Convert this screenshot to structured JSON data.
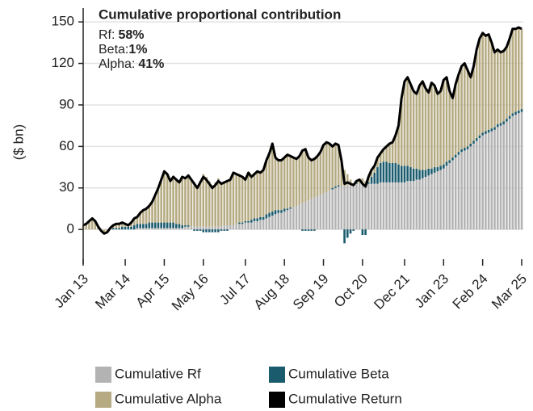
{
  "chart_data": {
    "type": "stacked_bar_line",
    "ylabel": "($ bn)",
    "annotation": {
      "title": "Cumulative proportional contribution",
      "items": [
        {
          "label": "Rf:",
          "value": 58,
          "value_label": "58%"
        },
        {
          "label": "Beta:",
          "value": 1,
          "value_label": "1%"
        },
        {
          "label": "Alpha:",
          "value": 41,
          "value_label": "41%"
        }
      ]
    },
    "categories": [
      "Jan 13",
      null,
      null,
      null,
      null,
      null,
      null,
      null,
      null,
      null,
      null,
      null,
      null,
      null,
      "Mar 14",
      null,
      null,
      null,
      null,
      null,
      null,
      null,
      null,
      null,
      null,
      null,
      null,
      "Apr 15",
      null,
      null,
      null,
      null,
      null,
      null,
      null,
      null,
      null,
      null,
      null,
      null,
      "May 16",
      null,
      null,
      null,
      null,
      null,
      null,
      null,
      null,
      null,
      null,
      null,
      null,
      null,
      "Jul 17",
      null,
      null,
      null,
      null,
      null,
      null,
      null,
      null,
      null,
      null,
      null,
      null,
      "Aug 18",
      null,
      null,
      null,
      null,
      null,
      null,
      null,
      null,
      null,
      null,
      null,
      null,
      "Sep 19",
      null,
      null,
      null,
      null,
      null,
      null,
      null,
      null,
      null,
      null,
      null,
      null,
      "Oct 20",
      null,
      null,
      null,
      null,
      null,
      null,
      null,
      null,
      null,
      null,
      null,
      null,
      null,
      "Dec 21",
      null,
      null,
      null,
      null,
      null,
      null,
      null,
      null,
      null,
      null,
      null,
      null,
      "Jan 23",
      null,
      null,
      null,
      null,
      null,
      null,
      null,
      null,
      null,
      null,
      null,
      null,
      "Feb 24",
      null,
      null,
      null,
      null,
      null,
      null,
      null,
      null,
      null,
      null,
      null,
      null,
      "Mar 25"
    ],
    "series": [
      {
        "name": "Cumulative Rf",
        "color": "#b3b3b3",
        "kind": "bar",
        "values": [
          0,
          0,
          0,
          0,
          0,
          0,
          0,
          0,
          0,
          0,
          0,
          0,
          0,
          0,
          0,
          0,
          0,
          0,
          1,
          1,
          1,
          1,
          1,
          1,
          1,
          1,
          1,
          1,
          1,
          1,
          1,
          1,
          1,
          1,
          2,
          2,
          2,
          2,
          2,
          2,
          2,
          2,
          2,
          2,
          2,
          2,
          2,
          3,
          3,
          3,
          3,
          4,
          4,
          4,
          5,
          5,
          5,
          6,
          6,
          7,
          7,
          8,
          9,
          10,
          11,
          12,
          12,
          13,
          14,
          15,
          16,
          17,
          18,
          19,
          20,
          21,
          22,
          23,
          24,
          25,
          26,
          27,
          28,
          29,
          30,
          31,
          31,
          31,
          32,
          32,
          33,
          33,
          33,
          32,
          32,
          33,
          33,
          33,
          33,
          34,
          34,
          34,
          34,
          34,
          34,
          34,
          34,
          34,
          35,
          35,
          35,
          36,
          36,
          37,
          38,
          39,
          40,
          41,
          42,
          43,
          44,
          46,
          48,
          50,
          52,
          54,
          56,
          57,
          58,
          60,
          62,
          64,
          66,
          68,
          69,
          70,
          71,
          72,
          74,
          75,
          76,
          78,
          80,
          82,
          83,
          84,
          85
        ]
      },
      {
        "name": "Cumulative Beta",
        "color": "#1a5b6e",
        "kind": "bar",
        "values": [
          0,
          0,
          0,
          0,
          0,
          0,
          0,
          0,
          0,
          1,
          1,
          1,
          1,
          2,
          2,
          2,
          2,
          3,
          3,
          3,
          3,
          3,
          4,
          4,
          4,
          4,
          4,
          4,
          4,
          4,
          4,
          3,
          3,
          2,
          1,
          1,
          0,
          -1,
          -1,
          -1,
          -2,
          -2,
          -2,
          -2,
          -2,
          -2,
          -1,
          -1,
          -1,
          0,
          0,
          0,
          1,
          1,
          1,
          1,
          2,
          2,
          2,
          2,
          2,
          3,
          3,
          3,
          3,
          2,
          2,
          2,
          1,
          1,
          0,
          0,
          0,
          -1,
          -1,
          -1,
          -1,
          -1,
          0,
          0,
          0,
          0,
          0,
          1,
          1,
          1,
          0,
          -10,
          -6,
          -3,
          -1,
          1,
          0,
          -4,
          -4,
          1,
          5,
          8,
          12,
          14,
          15,
          15,
          14,
          14,
          14,
          13,
          12,
          12,
          11,
          10,
          9,
          8,
          7,
          6,
          5,
          5,
          4,
          4,
          3,
          3,
          3,
          3,
          2,
          2,
          2,
          2,
          2,
          2,
          2,
          2,
          2,
          2,
          2,
          2,
          2,
          2,
          2,
          2,
          2,
          2,
          2,
          2,
          2,
          2,
          2,
          2,
          2
        ]
      },
      {
        "name": "Cumulative Alpha",
        "color": "#b5aa82",
        "kind": "bar",
        "values": [
          3,
          4,
          6,
          8,
          6,
          2,
          -1,
          -3,
          -2,
          0,
          2,
          3,
          3,
          3,
          2,
          1,
          3,
          5,
          5,
          8,
          10,
          11,
          12,
          15,
          20,
          25,
          31,
          37,
          35,
          30,
          33,
          32,
          30,
          35,
          34,
          36,
          34,
          32,
          29,
          33,
          38,
          36,
          33,
          30,
          32,
          35,
          32,
          32,
          33,
          33,
          38,
          36,
          34,
          33,
          30,
          35,
          31,
          32,
          34,
          32,
          34,
          39,
          43,
          49,
          38,
          36,
          36,
          37,
          39,
          37,
          36,
          34,
          35,
          39,
          39,
          32,
          29,
          29,
          29,
          31,
          35,
          36,
          34,
          30,
          31,
          29,
          19,
          12,
          8,
          4,
          0,
          1,
          3,
          5,
          3,
          4,
          5,
          5,
          7,
          7,
          9,
          11,
          14,
          15,
          20,
          28,
          49,
          61,
          64,
          60,
          56,
          54,
          61,
          64,
          59,
          55,
          62,
          59,
          53,
          54,
          61,
          61,
          50,
          43,
          51,
          56,
          60,
          61,
          55,
          48,
          54,
          64,
          70,
          72,
          69,
          69,
          62,
          54,
          54,
          51,
          51,
          52,
          56,
          61,
          60,
          60,
          58
        ]
      },
      {
        "name": "Cumulative Return",
        "color": "#000000",
        "kind": "line",
        "values": [
          3,
          4,
          6,
          8,
          6,
          2,
          -1,
          -3,
          -2,
          1,
          3,
          4,
          4,
          5,
          4,
          3,
          5,
          8,
          9,
          12,
          14,
          15,
          17,
          20,
          25,
          30,
          36,
          42,
          40,
          35,
          38,
          36,
          34,
          38,
          37,
          39,
          36,
          33,
          30,
          34,
          38,
          36,
          33,
          30,
          32,
          35,
          33,
          34,
          35,
          36,
          41,
          40,
          39,
          38,
          36,
          41,
          38,
          40,
          42,
          41,
          43,
          50,
          55,
          62,
          52,
          50,
          50,
          52,
          54,
          53,
          52,
          51,
          53,
          57,
          58,
          52,
          50,
          51,
          53,
          56,
          61,
          63,
          62,
          60,
          62,
          61,
          50,
          33,
          34,
          33,
          32,
          35,
          36,
          33,
          31,
          38,
          43,
          46,
          52,
          55,
          58,
          60,
          62,
          63,
          68,
          75,
          95,
          107,
          110,
          105,
          100,
          98,
          104,
          107,
          102,
          99,
          106,
          104,
          98,
          100,
          108,
          110,
          100,
          95,
          105,
          112,
          118,
          120,
          115,
          110,
          118,
          130,
          138,
          142,
          140,
          141,
          135,
          128,
          130,
          128,
          129,
          132,
          138,
          145,
          145,
          146,
          145
        ]
      }
    ],
    "ylim": [
      -25,
      160
    ],
    "yticks": [
      0,
      30,
      60,
      90,
      120,
      150
    ],
    "grid": true
  }
}
